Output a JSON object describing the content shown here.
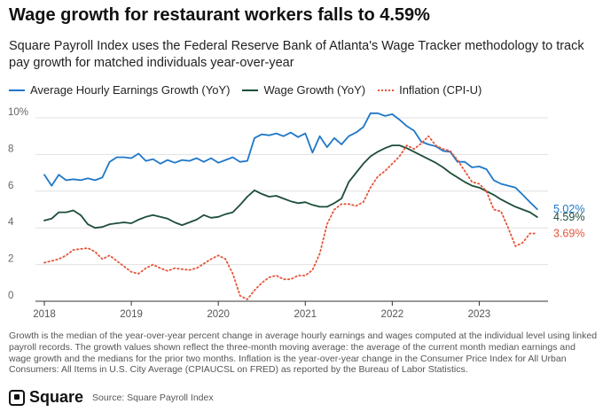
{
  "header": {
    "title": "Wage growth for restaurant workers falls to 4.59%",
    "subtitle": "Square Payroll Index uses the Federal Reserve Bank of Atlanta's Wage Tracker methodology to track pay growth for matched individuals year-over-year"
  },
  "footer": {
    "note": "Growth is the median of the year-over-year percent change in average hourly earnings and wages computed at the individual level using linked payroll records. The growth values shown reflect the three-month moving average: the average of the current month median earnings and wage growth and the medians for the prior two months. Inflation is the year-over-year change in the Consumer Price Index for All Urban Consumers: All Items in U.S. City Average (CPIAUCSL on FRED) as reported by the Bureau of Labor Statistics.",
    "brand": "Square",
    "source": "Source: Square Payroll Index",
    "brand_icon": "square-logo-icon"
  },
  "chart_data": {
    "type": "line",
    "title": "Wage growth for restaurant workers falls to 4.59%",
    "xlabel": "",
    "ylabel": "",
    "xlim": [
      "2018-01",
      "2023-10"
    ],
    "ylim": [
      0,
      10
    ],
    "y_ticks": [
      "0",
      "2",
      "4",
      "6",
      "8",
      "10%"
    ],
    "x_ticks": [
      "2018",
      "2019",
      "2020",
      "2021",
      "2022",
      "2023"
    ],
    "grid": "horizontal",
    "legend_position": "top",
    "series": [
      {
        "name": "Average Hourly Earnings Growth (YoY)",
        "color": "#1f77c8",
        "style": "solid",
        "end_label": "5.02%",
        "points": [
          [
            "2018-01",
            6.9
          ],
          [
            "2018-02",
            6.3
          ],
          [
            "2018-03",
            6.9
          ],
          [
            "2018-04",
            6.6
          ],
          [
            "2018-05",
            6.65
          ],
          [
            "2018-06",
            6.6
          ],
          [
            "2018-07",
            6.7
          ],
          [
            "2018-08",
            6.6
          ],
          [
            "2018-09",
            6.75
          ],
          [
            "2018-10",
            7.6
          ],
          [
            "2018-11",
            7.85
          ],
          [
            "2018-12",
            7.85
          ],
          [
            "2019-01",
            7.8
          ],
          [
            "2019-02",
            8.05
          ],
          [
            "2019-03",
            7.65
          ],
          [
            "2019-04",
            7.75
          ],
          [
            "2019-05",
            7.5
          ],
          [
            "2019-06",
            7.7
          ],
          [
            "2019-07",
            7.55
          ],
          [
            "2019-08",
            7.7
          ],
          [
            "2019-09",
            7.65
          ],
          [
            "2019-10",
            7.8
          ],
          [
            "2019-11",
            7.6
          ],
          [
            "2019-12",
            7.8
          ],
          [
            "2020-01",
            7.55
          ],
          [
            "2020-02",
            7.7
          ],
          [
            "2020-03",
            7.85
          ],
          [
            "2020-04",
            7.6
          ],
          [
            "2020-05",
            7.65
          ],
          [
            "2020-06",
            8.9
          ],
          [
            "2020-07",
            9.1
          ],
          [
            "2020-08",
            9.05
          ],
          [
            "2020-09",
            9.15
          ],
          [
            "2020-10",
            9.0
          ],
          [
            "2020-11",
            9.2
          ],
          [
            "2020-12",
            8.95
          ],
          [
            "2021-01",
            9.15
          ],
          [
            "2021-02",
            8.1
          ],
          [
            "2021-03",
            9.0
          ],
          [
            "2021-04",
            8.4
          ],
          [
            "2021-05",
            8.9
          ],
          [
            "2021-06",
            8.55
          ],
          [
            "2021-07",
            9.0
          ],
          [
            "2021-08",
            9.2
          ],
          [
            "2021-09",
            9.5
          ],
          [
            "2021-10",
            10.25
          ],
          [
            "2021-11",
            10.25
          ],
          [
            "2021-12",
            10.1
          ],
          [
            "2022-01",
            10.2
          ],
          [
            "2022-02",
            9.9
          ],
          [
            "2022-03",
            9.55
          ],
          [
            "2022-04",
            9.3
          ],
          [
            "2022-05",
            8.7
          ],
          [
            "2022-06",
            8.55
          ],
          [
            "2022-07",
            8.45
          ],
          [
            "2022-08",
            8.2
          ],
          [
            "2022-09",
            8.15
          ],
          [
            "2022-10",
            7.6
          ],
          [
            "2022-11",
            7.6
          ],
          [
            "2022-12",
            7.3
          ],
          [
            "2023-01",
            7.35
          ],
          [
            "2023-02",
            7.2
          ],
          [
            "2023-03",
            6.6
          ],
          [
            "2023-04",
            6.4
          ],
          [
            "2023-05",
            6.3
          ],
          [
            "2023-06",
            6.2
          ],
          [
            "2023-07",
            5.8
          ],
          [
            "2023-08",
            5.4
          ],
          [
            "2023-09",
            5.02
          ]
        ]
      },
      {
        "name": "Wage Growth (YoY)",
        "color": "#1d4d38",
        "style": "solid",
        "end_label": "4.59%",
        "points": [
          [
            "2018-01",
            4.4
          ],
          [
            "2018-02",
            4.5
          ],
          [
            "2018-03",
            4.85
          ],
          [
            "2018-04",
            4.85
          ],
          [
            "2018-05",
            4.95
          ],
          [
            "2018-06",
            4.7
          ],
          [
            "2018-07",
            4.2
          ],
          [
            "2018-08",
            4.0
          ],
          [
            "2018-09",
            4.05
          ],
          [
            "2018-10",
            4.2
          ],
          [
            "2018-11",
            4.25
          ],
          [
            "2018-12",
            4.3
          ],
          [
            "2019-01",
            4.25
          ],
          [
            "2019-02",
            4.45
          ],
          [
            "2019-03",
            4.6
          ],
          [
            "2019-04",
            4.7
          ],
          [
            "2019-05",
            4.6
          ],
          [
            "2019-06",
            4.5
          ],
          [
            "2019-07",
            4.3
          ],
          [
            "2019-08",
            4.15
          ],
          [
            "2019-09",
            4.3
          ],
          [
            "2019-10",
            4.45
          ],
          [
            "2019-11",
            4.7
          ],
          [
            "2019-12",
            4.55
          ],
          [
            "2020-01",
            4.6
          ],
          [
            "2020-02",
            4.75
          ],
          [
            "2020-03",
            4.85
          ],
          [
            "2020-04",
            5.25
          ],
          [
            "2020-05",
            5.7
          ],
          [
            "2020-06",
            6.05
          ],
          [
            "2020-07",
            5.85
          ],
          [
            "2020-08",
            5.7
          ],
          [
            "2020-09",
            5.75
          ],
          [
            "2020-10",
            5.6
          ],
          [
            "2020-11",
            5.45
          ],
          [
            "2020-12",
            5.35
          ],
          [
            "2021-01",
            5.4
          ],
          [
            "2021-02",
            5.25
          ],
          [
            "2021-03",
            5.15
          ],
          [
            "2021-04",
            5.15
          ],
          [
            "2021-05",
            5.35
          ],
          [
            "2021-06",
            5.6
          ],
          [
            "2021-07",
            6.5
          ],
          [
            "2021-08",
            7.0
          ],
          [
            "2021-09",
            7.5
          ],
          [
            "2021-10",
            7.9
          ],
          [
            "2021-11",
            8.15
          ],
          [
            "2021-12",
            8.35
          ],
          [
            "2022-01",
            8.5
          ],
          [
            "2022-02",
            8.5
          ],
          [
            "2022-03",
            8.35
          ],
          [
            "2022-04",
            8.15
          ],
          [
            "2022-05",
            7.95
          ],
          [
            "2022-06",
            7.75
          ],
          [
            "2022-07",
            7.55
          ],
          [
            "2022-08",
            7.3
          ],
          [
            "2022-09",
            7.0
          ],
          [
            "2022-10",
            6.75
          ],
          [
            "2022-11",
            6.5
          ],
          [
            "2022-12",
            6.3
          ],
          [
            "2023-01",
            6.2
          ],
          [
            "2023-02",
            6.0
          ],
          [
            "2023-03",
            5.8
          ],
          [
            "2023-04",
            5.55
          ],
          [
            "2023-05",
            5.35
          ],
          [
            "2023-06",
            5.15
          ],
          [
            "2023-07",
            5.0
          ],
          [
            "2023-08",
            4.85
          ],
          [
            "2023-09",
            4.59
          ]
        ]
      },
      {
        "name": "Inflation (CPI-U)",
        "color": "#e5553a",
        "style": "dotted",
        "end_label": "3.69%",
        "points": [
          [
            "2018-01",
            2.1
          ],
          [
            "2018-02",
            2.2
          ],
          [
            "2018-03",
            2.3
          ],
          [
            "2018-04",
            2.5
          ],
          [
            "2018-05",
            2.8
          ],
          [
            "2018-06",
            2.85
          ],
          [
            "2018-07",
            2.9
          ],
          [
            "2018-08",
            2.7
          ],
          [
            "2018-09",
            2.3
          ],
          [
            "2018-10",
            2.5
          ],
          [
            "2018-11",
            2.2
          ],
          [
            "2018-12",
            1.9
          ],
          [
            "2019-01",
            1.6
          ],
          [
            "2019-02",
            1.5
          ],
          [
            "2019-03",
            1.8
          ],
          [
            "2019-04",
            2.0
          ],
          [
            "2019-05",
            1.8
          ],
          [
            "2019-06",
            1.65
          ],
          [
            "2019-07",
            1.8
          ],
          [
            "2019-08",
            1.75
          ],
          [
            "2019-09",
            1.7
          ],
          [
            "2019-10",
            1.8
          ],
          [
            "2019-11",
            2.05
          ],
          [
            "2019-12",
            2.3
          ],
          [
            "2020-01",
            2.5
          ],
          [
            "2020-02",
            2.3
          ],
          [
            "2020-03",
            1.5
          ],
          [
            "2020-04",
            0.3
          ],
          [
            "2020-05",
            0.1
          ],
          [
            "2020-06",
            0.6
          ],
          [
            "2020-07",
            1.0
          ],
          [
            "2020-08",
            1.3
          ],
          [
            "2020-09",
            1.4
          ],
          [
            "2020-10",
            1.2
          ],
          [
            "2020-11",
            1.2
          ],
          [
            "2020-12",
            1.4
          ],
          [
            "2021-01",
            1.4
          ],
          [
            "2021-02",
            1.7
          ],
          [
            "2021-03",
            2.6
          ],
          [
            "2021-04",
            4.2
          ],
          [
            "2021-05",
            5.0
          ],
          [
            "2021-06",
            5.3
          ],
          [
            "2021-07",
            5.3
          ],
          [
            "2021-08",
            5.2
          ],
          [
            "2021-09",
            5.4
          ],
          [
            "2021-10",
            6.2
          ],
          [
            "2021-11",
            6.8
          ],
          [
            "2021-12",
            7.1
          ],
          [
            "2022-01",
            7.5
          ],
          [
            "2022-02",
            7.9
          ],
          [
            "2022-03",
            8.5
          ],
          [
            "2022-04",
            8.3
          ],
          [
            "2022-05",
            8.6
          ],
          [
            "2022-06",
            9.0
          ],
          [
            "2022-07",
            8.5
          ],
          [
            "2022-08",
            8.3
          ],
          [
            "2022-09",
            8.2
          ],
          [
            "2022-10",
            7.7
          ],
          [
            "2022-11",
            7.1
          ],
          [
            "2022-12",
            6.5
          ],
          [
            "2023-01",
            6.4
          ],
          [
            "2023-02",
            6.0
          ],
          [
            "2023-03",
            5.0
          ],
          [
            "2023-04",
            4.9
          ],
          [
            "2023-05",
            4.0
          ],
          [
            "2023-06",
            3.0
          ],
          [
            "2023-07",
            3.2
          ],
          [
            "2023-08",
            3.7
          ],
          [
            "2023-09",
            3.69
          ]
        ]
      }
    ]
  }
}
